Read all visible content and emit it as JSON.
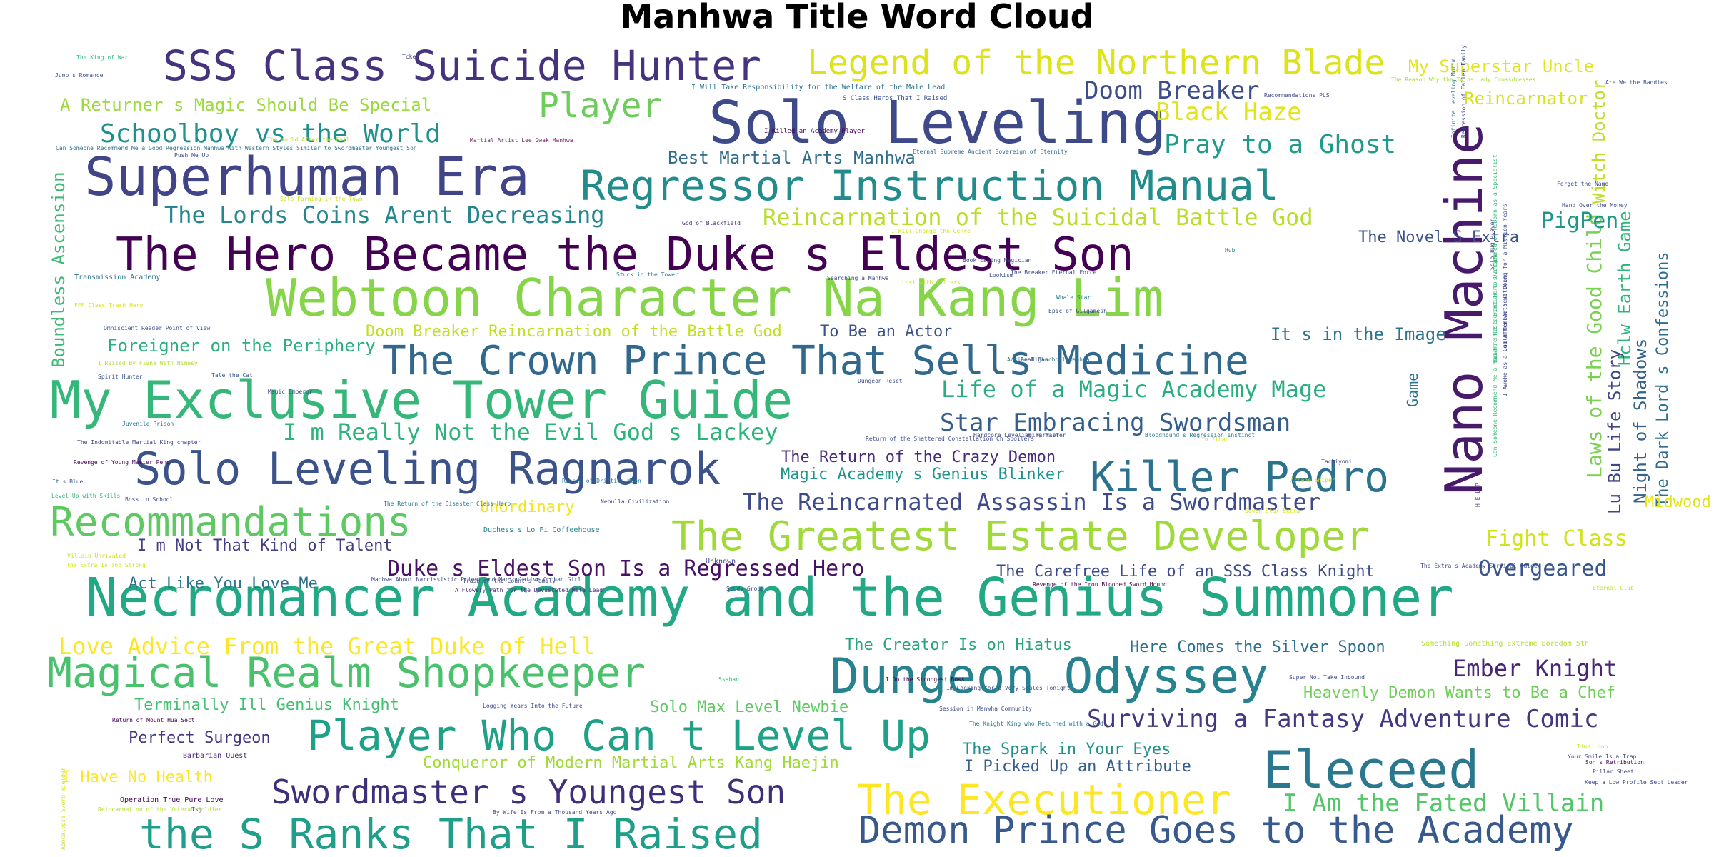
{
  "chart_data": {
    "type": "wordcloud",
    "title": "Manhwa Title Word Cloud",
    "colormap": "viridis",
    "background": "#ffffff",
    "words": [
      {
        "text": "Necromancer Academy and the Genius Summoner",
        "weight": 100,
        "color": "#22a884"
      },
      {
        "text": "Webtoon Character Na Kang Lim",
        "weight": 98,
        "color": "#86d549"
      },
      {
        "text": "Nano Machine",
        "weight": 96,
        "color": "#481a6c"
      },
      {
        "text": "My Exclusive Tower Guide",
        "weight": 96,
        "color": "#35b779"
      },
      {
        "text": "Solo Leveling",
        "weight": 90,
        "color": "#3e4989"
      },
      {
        "text": "Superhuman Era",
        "weight": 88,
        "color": "#414487"
      },
      {
        "text": "Eleceed",
        "weight": 86,
        "color": "#2a788e"
      },
      {
        "text": "Dungeon Odyssey",
        "weight": 84,
        "color": "#26828e"
      },
      {
        "text": "Solo Leveling Ragnarok",
        "weight": 80,
        "color": "#3b528b"
      },
      {
        "text": "The Hero Became the Duke s Eldest Son",
        "weight": 78,
        "color": "#440154"
      },
      {
        "text": "Killer Pedro",
        "weight": 76,
        "color": "#2c728e"
      },
      {
        "text": "The Crown Prince That Sells Medicine",
        "weight": 74,
        "color": "#31688e"
      },
      {
        "text": "Recommandations",
        "weight": 74,
        "color": "#5ec962"
      },
      {
        "text": "The Executioner",
        "weight": 74,
        "color": "#fde725"
      },
      {
        "text": "the S Ranks That I Raised",
        "weight": 72,
        "color": "#1f9e89"
      },
      {
        "text": "Player Who Can t Level Up",
        "weight": 72,
        "color": "#1fa187"
      },
      {
        "text": "SSS Class Suicide Hunter",
        "weight": 70,
        "color": "#46337e"
      },
      {
        "text": "Legend of the Northern Blade",
        "weight": 64,
        "color": "#dde318"
      },
      {
        "text": "The Greatest Estate Developer",
        "weight": 64,
        "color": "#a0da39"
      },
      {
        "text": "Regressor Instruction Manual",
        "weight": 64,
        "color": "#228c8d"
      },
      {
        "text": "Magical Realm Shopkeeper",
        "weight": 64,
        "color": "#4ac16d"
      },
      {
        "text": "Swordmaster s Youngest Son",
        "weight": 58,
        "color": "#3f2e7a"
      },
      {
        "text": "Demon Prince Goes to the Academy",
        "weight": 58,
        "color": "#38598c"
      },
      {
        "text": "Player",
        "weight": 52,
        "color": "#6ccd5a"
      },
      {
        "text": "Schoolboy vs the World",
        "weight": 42,
        "color": "#20908d"
      },
      {
        "text": "The Lords Coins Arent Decreasing",
        "weight": 40,
        "color": "#24878e"
      },
      {
        "text": "Reincarnation of the Suicidal Battle God",
        "weight": 40,
        "color": "#b8de29"
      },
      {
        "text": "Life of a Magic Academy Mage",
        "weight": 40,
        "color": "#29af7f"
      },
      {
        "text": "Star Embracing Swordsman",
        "weight": 40,
        "color": "#355e8d"
      },
      {
        "text": "I m Really Not the Evil God s Lackey",
        "weight": 38,
        "color": "#2eb37c"
      },
      {
        "text": "Doom Breaker",
        "weight": 40,
        "color": "#3d4e8a"
      },
      {
        "text": "Black Haze",
        "weight": 40,
        "color": "#e2e418"
      },
      {
        "text": "Pray to a Ghost",
        "weight": 40,
        "color": "#1e9b8a"
      },
      {
        "text": "Surviving a Fantasy Adventure Comic",
        "weight": 40,
        "color": "#453781"
      },
      {
        "text": "I Am the Fated Villain",
        "weight": 40,
        "color": "#54c568"
      },
      {
        "text": "The Reincarnated Assassin Is a Swordmaster",
        "weight": 36,
        "color": "#3e4a89"
      },
      {
        "text": "Duke s Eldest Son Is a Regressed Hero",
        "weight": 34,
        "color": "#471164"
      },
      {
        "text": "Ember Knight",
        "weight": 36,
        "color": "#482576"
      },
      {
        "text": "Overgeared",
        "weight": 34,
        "color": "#39568c"
      },
      {
        "text": "Love Advice From the Great Duke of Hell",
        "weight": 36,
        "color": "#fbe723"
      },
      {
        "text": "Fight Class",
        "weight": 34,
        "color": "#d2e21b"
      },
      {
        "text": "Laws of the Good Child",
        "weight": 32,
        "color": "#7ad151"
      },
      {
        "text": "Boundless Ascension",
        "weight": 28,
        "color": "#3aba76"
      },
      {
        "text": "Foreigner on the Periphery",
        "weight": 28,
        "color": "#2ab07f"
      },
      {
        "text": "Best Martial Arts Manhwa",
        "weight": 28,
        "color": "#2f6c8e"
      },
      {
        "text": "A Returner s Magic Should Be Special",
        "weight": 28,
        "color": "#9bd93c"
      },
      {
        "text": "My Superstar Uncle",
        "weight": 28,
        "color": "#e5e419"
      },
      {
        "text": "Reincarnator",
        "weight": 28,
        "color": "#d8e219"
      },
      {
        "text": "PigPen",
        "weight": 30,
        "color": "#1f968b"
      },
      {
        "text": "The Novel S Extra",
        "weight": 26,
        "color": "#3b528b"
      },
      {
        "text": "Witch Doctor",
        "weight": 28,
        "color": "#c0df25"
      },
      {
        "text": "Hclw Earth Game",
        "weight": 26,
        "color": "#2fb47c"
      },
      {
        "text": "Lu Bu Life Story",
        "weight": 26,
        "color": "#404588"
      },
      {
        "text": "Night of Shadows",
        "weight": 26,
        "color": "#33628d"
      },
      {
        "text": "The Dark Lord s Confessions",
        "weight": 26,
        "color": "#2d708e"
      },
      {
        "text": "Doom Breaker Reincarnation of the Battle God",
        "weight": 26,
        "color": "#c2df23"
      },
      {
        "text": "To Be an Actor",
        "weight": 26,
        "color": "#3b518b"
      },
      {
        "text": "It s in the Image",
        "weight": 26,
        "color": "#2c738e"
      },
      {
        "text": "The Return of the Crazy Demon",
        "weight": 26,
        "color": "#472d7b"
      },
      {
        "text": "Magic Academy s Genius Blinker",
        "weight": 26,
        "color": "#1f948c"
      },
      {
        "text": "Unordinary",
        "weight": 24,
        "color": "#f1e51d"
      },
      {
        "text": "Midwood",
        "weight": 24,
        "color": "#e3e418"
      },
      {
        "text": "I m Not That Kind of Talent",
        "weight": 24,
        "color": "#433e85"
      },
      {
        "text": "Act Like You Love Me",
        "weight": 24,
        "color": "#2d718e"
      },
      {
        "text": "The Carefree Life of an SSS Class Knight",
        "weight": 24,
        "color": "#3e4c8a"
      },
      {
        "text": "The Creator Is on Hiatus",
        "weight": 24,
        "color": "#2aa37f"
      },
      {
        "text": "Here Comes the Silver Spoon",
        "weight": 24,
        "color": "#2c728e"
      },
      {
        "text": "Terminally Ill Genius Knight",
        "weight": 24,
        "color": "#43bf71"
      },
      {
        "text": "Solo Max Level Newbie",
        "weight": 24,
        "color": "#5ec962"
      },
      {
        "text": "Heavenly Demon Wants to Be a Chef",
        "weight": 24,
        "color": "#6ece58"
      },
      {
        "text": "Perfect Surgeon",
        "weight": 24,
        "color": "#453882"
      },
      {
        "text": "The Spark in Your Eyes",
        "weight": 24,
        "color": "#20928c"
      },
      {
        "text": "Conqueror of Modern Martial Arts Kang Haejin",
        "weight": 24,
        "color": "#a2da37"
      },
      {
        "text": "I Picked Up an Attribute",
        "weight": 24,
        "color": "#365d8d"
      },
      {
        "text": "I Have No Health",
        "weight": 24,
        "color": "#fde725"
      },
      {
        "text": "Game",
        "weight": 20,
        "color": "#2c738e"
      },
      {
        "text": "Unknown",
        "weight": 12,
        "color": "#414487"
      },
      {
        "text": "Barbarian Quest",
        "weight": 12,
        "color": "#482475"
      },
      {
        "text": "Operation True Pure Love",
        "weight": 12,
        "color": "#440154"
      },
      {
        "text": "Duchess s Lo Fi Coffeehouse",
        "weight": 12,
        "color": "#26828e"
      },
      {
        "text": "I Will Take Responsibility for the Welfare of the Male Lead",
        "weight": 12,
        "color": "#2c728e"
      },
      {
        "text": "S Class Heros That I Raised",
        "weight": 9,
        "color": "#3b528b"
      },
      {
        "text": "I Killed an Academy Player",
        "weight": 9,
        "color": "#440154"
      },
      {
        "text": "Martial Artist Lee Gwak Manhwa",
        "weight": 8,
        "color": "#7f1f6e"
      },
      {
        "text": "Eternal Supreme Ancient Sovereign of Eternity",
        "weight": 8,
        "color": "#31688e"
      },
      {
        "text": "Can Someone Recommend Me a Good Regression Manhwa With Western Styles Similar to Swordmaster Youngest Son",
        "weight": 8,
        "color": "#2c728e"
      },
      {
        "text": "Recommendations PLS",
        "weight": 8,
        "color": "#404588"
      },
      {
        "text": "The Reason Why the Twins Lady Crossdresses",
        "weight": 8,
        "color": "#a8db34"
      },
      {
        "text": "Are We the Baddies",
        "weight": 8,
        "color": "#3b528b"
      },
      {
        "text": "The King of War",
        "weight": 8,
        "color": "#35b779"
      },
      {
        "text": "Jump s Romance",
        "weight": 8,
        "color": "#3b528b"
      },
      {
        "text": "Tckel",
        "weight": 8,
        "color": "#414487"
      },
      {
        "text": "Push Me Up",
        "weight": 8,
        "color": "#3e4a89"
      },
      {
        "text": "The World After the Fall",
        "weight": 8,
        "color": "#b5de2b"
      },
      {
        "text": "Solo Farming in the Town",
        "weight": 8,
        "color": "#c8e020"
      },
      {
        "text": "God of Blackfield",
        "weight": 8,
        "color": "#482878"
      },
      {
        "text": "I Will Change the Genre",
        "weight": 8,
        "color": "#d2e21b"
      },
      {
        "text": "Hub",
        "weight": 8,
        "color": "#2a788e"
      },
      {
        "text": "Transmission Academy",
        "weight": 8,
        "color": "#2a788e"
      },
      {
        "text": "FFF Class Trash Hero",
        "weight": 10,
        "color": "#dde318"
      },
      {
        "text": "Omniscient Reader Point of View",
        "weight": 8,
        "color": "#3b528b"
      },
      {
        "text": "I Raised By Fiana With Nimesy",
        "weight": 8,
        "color": "#b5de2b"
      },
      {
        "text": "Spirit Hunter",
        "weight": 8,
        "color": "#3b528b"
      },
      {
        "text": "Tale the Cat",
        "weight": 8,
        "color": "#3b528b"
      },
      {
        "text": "Magic Emperor",
        "weight": 8,
        "color": "#3e4a89"
      },
      {
        "text": "Juvenile Prison",
        "weight": 8,
        "color": "#2a788e"
      },
      {
        "text": "The Indomitable Martial King chapter",
        "weight": 8,
        "color": "#3e4a89"
      },
      {
        "text": "Revenge of Young Master Peng",
        "weight": 8,
        "color": "#440154"
      },
      {
        "text": "It s Blue",
        "weight": 8,
        "color": "#3b528b"
      },
      {
        "text": "Level Up with Skills",
        "weight": 8,
        "color": "#35b779"
      },
      {
        "text": "Boss in School",
        "weight": 8,
        "color": "#3e4a89"
      },
      {
        "text": "The Return of the Disaster Class Hero",
        "weight": 8,
        "color": "#2a788e"
      },
      {
        "text": "Nebulla Civilization",
        "weight": 8,
        "color": "#3e4a89"
      },
      {
        "text": "Reaper of Drifting Moon",
        "weight": 8,
        "color": "#2a788e"
      },
      {
        "text": "Villain Unrivaled",
        "weight": 8,
        "color": "#d2e21b"
      },
      {
        "text": "The Extra Is Too Strong",
        "weight": 8,
        "color": "#d2e21b"
      },
      {
        "text": "Manhwa About Narcissistic Priest and Manipulative Orphan Girl",
        "weight": 8,
        "color": "#3e4a89"
      },
      {
        "text": "Trash of the Count s Family",
        "weight": 8,
        "color": "#3e4a89"
      },
      {
        "text": "A Flowery Path for the Devastated Male Lead",
        "weight": 8,
        "color": "#472d7b"
      },
      {
        "text": "Study Group",
        "weight": 8,
        "color": "#3e4a89"
      },
      {
        "text": "Revenge of the Iron Blooded Sword Hound",
        "weight": 8,
        "color": "#440154"
      },
      {
        "text": "Eternal Club",
        "weight": 8,
        "color": "#c8e020"
      },
      {
        "text": "The Extra s Academy Survival Guide",
        "weight": 8,
        "color": "#3e4a89"
      },
      {
        "text": "Ssaban",
        "weight": 8,
        "color": "#35b779"
      },
      {
        "text": "I Do the Strongest Boss",
        "weight": 8,
        "color": "#440154"
      },
      {
        "text": "Im Looking for a Very Scales Tonight",
        "weight": 8,
        "color": "#3e4a89"
      },
      {
        "text": "Super Not Take Inbound",
        "weight": 8,
        "color": "#3e4a89"
      },
      {
        "text": "Something Something Extreme Boredom 5th",
        "weight": 8,
        "color": "#b5de2b"
      },
      {
        "text": "Logging Years Into the Future",
        "weight": 12,
        "color": "#3e4a89"
      },
      {
        "text": "Session in Manwha Community",
        "weight": 8,
        "color": "#3e4a89"
      },
      {
        "text": "Return of Mount Hua Sect",
        "weight": 8,
        "color": "#440154"
      },
      {
        "text": "The Knight King who Returned with a God",
        "weight": 8,
        "color": "#2a788e"
      },
      {
        "text": "Time Loop",
        "weight": 8,
        "color": "#d2e21b"
      },
      {
        "text": "Your Smile Is a Trap",
        "weight": 8,
        "color": "#3e4a89"
      },
      {
        "text": "Son s Retribution",
        "weight": 8,
        "color": "#440154"
      },
      {
        "text": "Pillar Sheet",
        "weight": 8,
        "color": "#3e4a89"
      },
      {
        "text": "Keep a Low Profile Sect Leader",
        "weight": 8,
        "color": "#3e4a89"
      },
      {
        "text": "Reincarnation of the Veteran Soldier",
        "weight": 8,
        "color": "#b5de2b"
      },
      {
        "text": "Tsg",
        "weight": 8,
        "color": "#3e4a89"
      },
      {
        "text": "By Wife Is From a Thousand Years Ago",
        "weight": 8,
        "color": "#3e4a89"
      },
      {
        "text": "Apocalypse Sword Wielder",
        "weight": 8,
        "color": "#d2e21b"
      },
      {
        "text": "Stuck in the Tower",
        "weight": 8,
        "color": "#2a788e"
      },
      {
        "text": "Searching a Manhwa",
        "weight": 8,
        "color": "#3e4a89"
      },
      {
        "text": "Lost with Filters",
        "weight": 8,
        "color": "#c8e020"
      },
      {
        "text": "Lookism",
        "weight": 8,
        "color": "#3e4a89"
      },
      {
        "text": "Book Eating Magician",
        "weight": 8,
        "color": "#3e4a89"
      },
      {
        "text": "The Breaker Eternal Force",
        "weight": 8,
        "color": "#3e4a89"
      },
      {
        "text": "Whale Star",
        "weight": 8,
        "color": "#2a788e"
      },
      {
        "text": "Epic of Gilgamesh",
        "weight": 8,
        "color": "#3e4a89"
      },
      {
        "text": "Action Highschool Manhwa",
        "weight": 8,
        "color": "#2a788e"
      },
      {
        "text": "Real Ban",
        "weight": 8,
        "color": "#3e4a89"
      },
      {
        "text": "Dungeon Reset",
        "weight": 8,
        "color": "#3e4a89"
      },
      {
        "text": "Return of the Shattered Constellation Ch Spoilers",
        "weight": 8,
        "color": "#3e4a89"
      },
      {
        "text": "Hardcore Leveling Warrior",
        "weight": 8,
        "color": "#3e4a89"
      },
      {
        "text": "Taming Master",
        "weight": 8,
        "color": "#3e4a89"
      },
      {
        "text": "Bloodhound s Regression Instinct",
        "weight": 8,
        "color": "#2a788e"
      },
      {
        "text": "Yu Ilhan",
        "weight": 8,
        "color": "#d2e21b"
      },
      {
        "text": "Seven Star Extra",
        "weight": 8,
        "color": "#d2e21b"
      },
      {
        "text": "Arcane Sniper",
        "weight": 8,
        "color": "#c8e020"
      },
      {
        "text": "Tachiyomi",
        "weight": 8,
        "color": "#3e4a89"
      },
      {
        "text": "Hand Over the Money",
        "weight": 8,
        "color": "#3e4a89"
      },
      {
        "text": "Forget the Name",
        "weight": 8,
        "color": "#3e4a89"
      },
      {
        "text": "Infinite Leveling Murim",
        "weight": 8,
        "color": "#2a788e"
      },
      {
        "text": "Regression of Fallen Family",
        "weight": 8,
        "color": "#3e4a89"
      },
      {
        "text": "Solo Bug Player",
        "weight": 8,
        "color": "#3e4a89"
      },
      {
        "text": "Guild Member Next Door",
        "weight": 8,
        "color": "#3e4a89"
      },
      {
        "text": "Bizarre Restaurant Here s a Game",
        "weight": 8,
        "color": "#35b779"
      },
      {
        "text": "I Awoke as a God After Auto Battling for a Million Years",
        "weight": 8,
        "color": "#3e4a89"
      },
      {
        "text": "Can Someone Recommend Me a Manwha That s Similar to Overgeared or Reborn as a Specialist",
        "weight": 8,
        "color": "#35b779"
      },
      {
        "text": "H E L P",
        "weight": 8,
        "color": "#3e4a89"
      }
    ]
  }
}
